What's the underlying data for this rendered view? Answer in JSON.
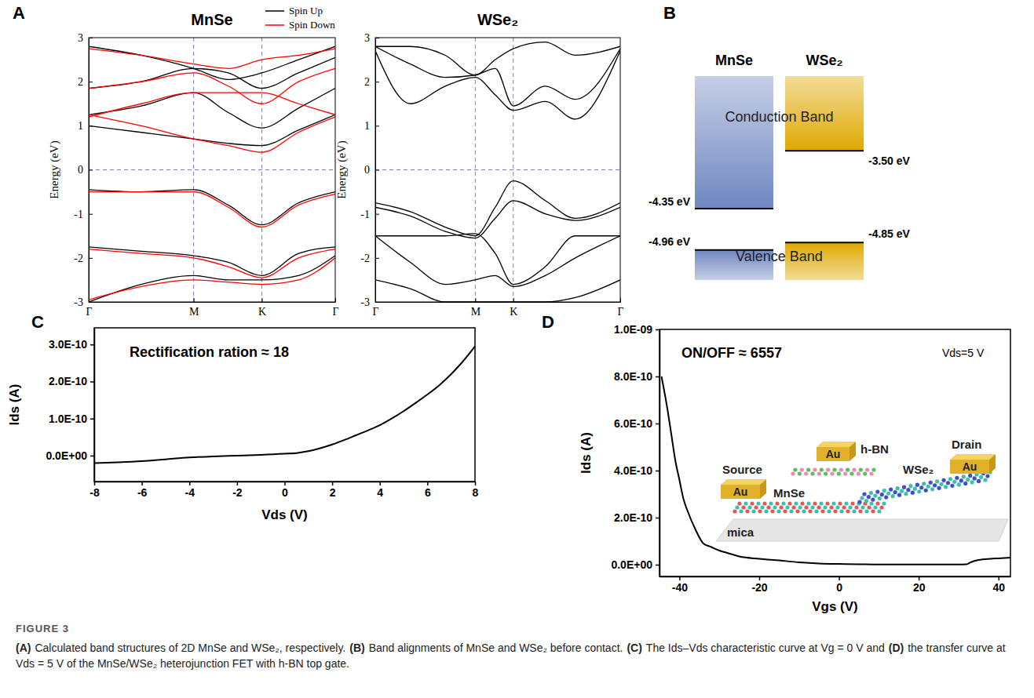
{
  "chart_data": [
    {
      "type": "line",
      "panel": "A",
      "title": "MnSe",
      "x": [
        0,
        0.5,
        1,
        1.33,
        1.65,
        2.0,
        2.35
      ],
      "xlim": [
        0,
        2.35
      ],
      "xticks": [
        {
          "value": 0,
          "label": "Γ"
        },
        {
          "value": 1,
          "label": "M"
        },
        {
          "value": 1.65,
          "label": "K"
        },
        {
          "value": 2.35,
          "label": "Γ"
        }
      ],
      "ylabel": "Energy (eV)",
      "ylim": [
        -3,
        3
      ],
      "yticks": [
        -3,
        -2,
        -1,
        0,
        1,
        2,
        3
      ],
      "legend": "above",
      "series": [
        {
          "name": "Spin Up",
          "color": "#000000",
          "values": [
            [
              -3.0,
              -2.6,
              -2.4,
              -2.5,
              -2.5,
              -2.4,
              -1.95
            ],
            [
              -1.75,
              -1.85,
              -1.95,
              -2.1,
              -2.4,
              -1.9,
              -1.75
            ],
            [
              -0.45,
              -0.5,
              -0.45,
              -0.8,
              -1.25,
              -0.75,
              -0.5
            ],
            [
              1.0,
              0.85,
              0.7,
              0.6,
              0.55,
              0.9,
              1.25
            ],
            [
              1.25,
              1.45,
              1.75,
              1.3,
              0.95,
              1.4,
              1.85
            ],
            [
              1.85,
              2.0,
              2.3,
              2.2,
              1.85,
              2.2,
              2.55
            ],
            [
              2.8,
              2.6,
              2.3,
              2.05,
              2.2,
              2.5,
              2.8
            ]
          ]
        },
        {
          "name": "Spin Down",
          "color": "#ff0000",
          "values": [
            [
              -2.95,
              -2.65,
              -2.5,
              -2.55,
              -2.6,
              -2.5,
              -2.0
            ],
            [
              -1.8,
              -1.9,
              -2.0,
              -2.2,
              -2.45,
              -2.0,
              -1.8
            ],
            [
              -0.5,
              -0.5,
              -0.5,
              -0.85,
              -1.3,
              -0.8,
              -0.55
            ],
            [
              1.25,
              1.0,
              0.7,
              0.55,
              0.4,
              0.85,
              1.2
            ],
            [
              1.2,
              1.5,
              1.75,
              1.75,
              1.75,
              1.5,
              1.25
            ],
            [
              1.85,
              2.0,
              2.2,
              1.9,
              1.5,
              2.0,
              2.3
            ],
            [
              2.75,
              2.6,
              2.4,
              2.3,
              2.5,
              2.6,
              2.75
            ]
          ]
        }
      ]
    },
    {
      "type": "line",
      "title": "WSe₂",
      "x": [
        0,
        0.35,
        0.7,
        1,
        1.2,
        1.38,
        1.7,
        2.0,
        2.45
      ],
      "xlim": [
        0,
        2.45
      ],
      "xticks": [
        {
          "value": 0,
          "label": "Γ"
        },
        {
          "value": 1,
          "label": "M"
        },
        {
          "value": 1.38,
          "label": "K"
        },
        {
          "value": 2.45,
          "label": "Γ"
        }
      ],
      "ylabel": "Energy (eV)",
      "ylim": [
        -3,
        3
      ],
      "yticks": [
        -3,
        -2,
        -1,
        0,
        1,
        2,
        3
      ],
      "series": [
        {
          "color": "#000000",
          "values": [
            [
              2.7,
              1.5,
              1.9,
              2.1,
              1.7,
              1.35,
              1.55,
              1.15,
              2.7
            ],
            [
              2.8,
              2.4,
              2.1,
              2.15,
              2.3,
              1.45,
              1.9,
              1.6,
              2.75
            ],
            [
              2.8,
              2.8,
              2.6,
              2.15,
              2.5,
              2.75,
              2.9,
              2.6,
              2.8
            ],
            [
              -0.75,
              -0.95,
              -1.3,
              -1.5,
              -0.85,
              -0.25,
              -0.7,
              -1.1,
              -0.75
            ],
            [
              -0.85,
              -1.05,
              -1.4,
              -1.55,
              -1.1,
              -0.7,
              -1.0,
              -1.15,
              -0.85
            ],
            [
              -1.5,
              -1.5,
              -1.5,
              -1.45,
              -1.9,
              -2.6,
              -2.2,
              -1.5,
              -1.5
            ],
            [
              -1.5,
              -2.1,
              -2.6,
              -2.5,
              -2.4,
              -2.65,
              -2.4,
              -2.0,
              -1.5
            ],
            [
              -2.5,
              -2.7,
              -3.0,
              -3.0,
              -3.0,
              -3.0,
              -3.0,
              -2.9,
              -2.5
            ]
          ]
        }
      ]
    },
    {
      "type": "band_alignment",
      "panel": "B",
      "ylim": [
        -5.4,
        -2.4
      ],
      "tick_labels": false,
      "band_labels": [
        "Conduction Band",
        "Valence Band"
      ],
      "materials": [
        {
          "name": "MnSe",
          "color": "#6f86c0",
          "cbm": -4.35,
          "vbm": -4.96,
          "cbm_label": "-4.35 eV",
          "vbm_label": "-4.96 eV"
        },
        {
          "name": "WSe₂",
          "color": "#e0a800",
          "cbm": -3.5,
          "vbm": -4.85,
          "cbm_label": "-3.50 eV",
          "vbm_label": "-4.85 eV"
        }
      ]
    },
    {
      "type": "line",
      "panel": "C",
      "x": [
        -8,
        -7,
        -6,
        -5,
        -4,
        -3,
        -2,
        -1,
        0,
        0.5,
        1,
        1.5,
        2,
        2.5,
        3,
        3.5,
        4,
        4.5,
        5,
        5.5,
        6,
        6.5,
        7,
        7.5,
        8
      ],
      "xlim": [
        -8,
        8
      ],
      "xticks": [
        -8,
        -6,
        -4,
        -2,
        0,
        2,
        4,
        6,
        8
      ],
      "xlabel": "Vds (V)",
      "ylim": [
        -7e-11,
        3.45e-10
      ],
      "yticks": [
        {
          "value": 0,
          "label": "0.0E+00"
        },
        {
          "value": 1e-10,
          "label": "1.0E-10"
        },
        {
          "value": 2e-10,
          "label": "2.0E-10"
        },
        {
          "value": 3e-10,
          "label": "3.0E-10"
        }
      ],
      "ylabel": "Ids (A)",
      "annotations": [
        "Rectification ration ≈ 18"
      ],
      "series": [
        {
          "color": "#000000",
          "values": [
            -2e-11,
            -1.8e-11,
            -1.5e-11,
            -1e-11,
            -5e-12,
            -2e-12,
            0,
            2e-12,
            5e-12,
            7e-12,
            1.2e-11,
            2e-11,
            3e-11,
            4.2e-11,
            5.5e-11,
            6.8e-11,
            8.2e-11,
            1e-10,
            1.2e-10,
            1.42e-10,
            1.65e-10,
            1.9e-10,
            2.2e-10,
            2.55e-10,
            2.95e-10
          ]
        }
      ]
    },
    {
      "type": "line",
      "panel": "D",
      "x": [
        -44.5,
        -43,
        -42,
        -41,
        -40,
        -39,
        -38,
        -36,
        -34,
        -32,
        -30,
        -28,
        -25,
        -20,
        -15,
        -10,
        -5,
        0,
        5,
        10,
        15,
        20,
        25,
        30,
        32,
        33,
        35,
        38,
        40,
        43
      ],
      "xlim": [
        -45,
        43
      ],
      "xticks": [
        -40,
        -20,
        0,
        20,
        40
      ],
      "xlabel": "Vgs (V)",
      "ylim": [
        -5e-11,
        1e-09
      ],
      "yticks": [
        {
          "value": 0,
          "label": "0.0E+00"
        },
        {
          "value": 2e-10,
          "label": "2.0E-10"
        },
        {
          "value": 4e-10,
          "label": "4.0E-10"
        },
        {
          "value": 6e-10,
          "label": "6.0E-10"
        },
        {
          "value": 8e-10,
          "label": "8.0E-10"
        },
        {
          "value": 1e-09,
          "label": "1.0E-09"
        }
      ],
      "ylabel": "Ids (A)",
      "annotations": [
        "ON/OFF ≈ 6557",
        "Vds=5 V"
      ],
      "inset": {
        "source": "Source",
        "drain": "Drain",
        "contact": "Au",
        "layers": [
          "MnSe",
          "h-BN",
          "WSe₂"
        ],
        "substrate": "mica"
      },
      "series": [
        {
          "color": "#000000",
          "values": [
            8e-10,
            6.6e-10,
            5.5e-10,
            4.4e-10,
            3.6e-10,
            2.8e-10,
            2.3e-10,
            1.5e-10,
            9e-11,
            7.5e-11,
            6e-11,
            5e-11,
            3.5e-11,
            2.5e-11,
            1.8e-11,
            1e-11,
            5e-12,
            3e-12,
            2e-12,
            1e-12,
            1e-12,
            1e-12,
            1e-12,
            1e-12,
            2e-12,
            1e-11,
            2e-11,
            2.5e-11,
            2.7e-11,
            3e-11
          ]
        }
      ]
    }
  ],
  "caption": {
    "label": "FIGURE 3",
    "segments": [
      {
        "bold": "(A)",
        "text": "Calculated band structures of 2D MnSe and WSe₂, respectively."
      },
      {
        "bold": "(B)",
        "text": "Band alignments of MnSe and WSe₂ before contact."
      },
      {
        "bold": "(C)",
        "text": "The Ids–Vds characteristic curve at Vg = 0 V and"
      },
      {
        "bold": "(D)",
        "text": "the transfer curve at Vds = 5 V of the MnSe/WSe₂ heterojunction FET with h-BN top gate."
      }
    ]
  }
}
